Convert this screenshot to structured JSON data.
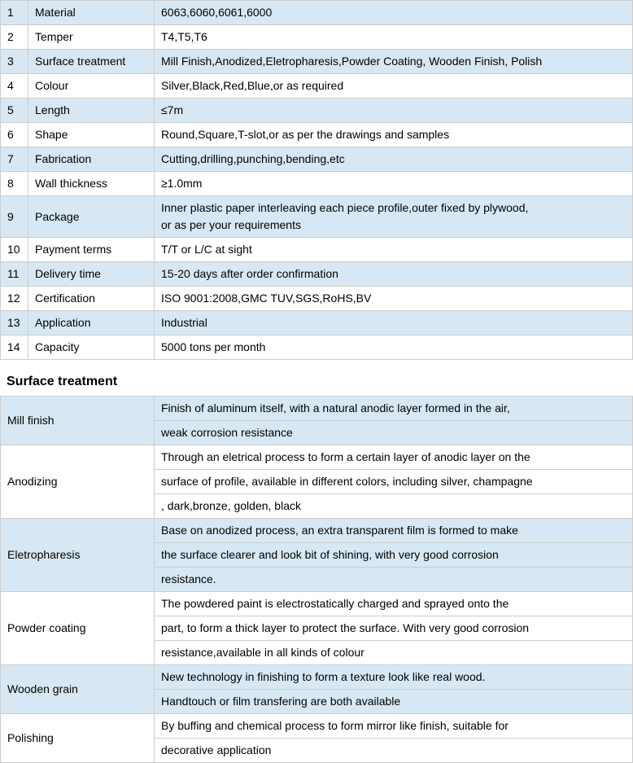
{
  "colors": {
    "alt_row_bg": "#d7e8f4",
    "plain_row_bg": "#ffffff",
    "border": "#cccccc",
    "text": "#000000"
  },
  "specs": {
    "rows": [
      {
        "n": "1",
        "label": "Material",
        "value": "6063,6060,6061,6000"
      },
      {
        "n": "2",
        "label": "Temper",
        "value": "T4,T5,T6"
      },
      {
        "n": "3",
        "label": "Surface treatment",
        "value": "Mill Finish,Anodized,Eletropharesis,Powder Coating, Wooden Finish, Polish"
      },
      {
        "n": "4",
        "label": "Colour",
        "value": "Silver,Black,Red,Blue,or as required"
      },
      {
        "n": "5",
        "label": "Length",
        "value": "≤7m"
      },
      {
        "n": "6",
        "label": "Shape",
        "value": "Round,Square,T-slot,or as per the drawings and samples"
      },
      {
        "n": "7",
        "label": "Fabrication",
        "value": "Cutting,drilling,punching,bending,etc"
      },
      {
        "n": "8",
        "label": "Wall thickness",
        "value": "≥1.0mm"
      },
      {
        "n": "9",
        "label": "Package",
        "value_lines": [
          "Inner plastic paper interleaving each piece profile,outer fixed by plywood,",
          "or as per your requirements"
        ]
      },
      {
        "n": "10",
        "label": "Payment terms",
        "value": "T/T or L/C at sight"
      },
      {
        "n": "11",
        "label": "Delivery time",
        "value": "15-20  days after order confirmation"
      },
      {
        "n": "12",
        "label": "Certification",
        "value": "ISO 9001:2008,GMC TUV,SGS,RoHS,BV"
      },
      {
        "n": "13",
        "label": "Application",
        "value": "Industrial"
      },
      {
        "n": "14",
        "label": "Capacity",
        "value": "5000 tons per month"
      }
    ]
  },
  "surface_section": {
    "title": "Surface treatment",
    "items": [
      {
        "label": "Mill finish",
        "lines": [
          "Finish of aluminum itself, with a natural anodic layer formed in the air,",
          "weak corrosion resistance"
        ],
        "alt": true
      },
      {
        "label": "Anodizing",
        "lines": [
          "Through   an eletrical process to form a certain layer of anodic layer on the",
          "surface of profile, available in different colors, including silver,   champagne",
          ", dark,bronze, golden, black"
        ],
        "alt": false
      },
      {
        "label": "Eletropharesis",
        "lines": [
          "Base on anodized process, an extra transparent film is formed to make",
          "the surface clearer and look bit of shining, with very good corrosion",
          "resistance."
        ],
        "alt": true
      },
      {
        "label": "Powder coating",
        "lines": [
          "The powdered paint is electrostatically charged and sprayed onto the",
          "part, to form a thick layer to protect the surface. With very good corrosion",
          "resistance,available in all kinds of colour"
        ],
        "alt": false
      },
      {
        "label": "Wooden grain",
        "lines": [
          "New technology in finishing to form a texture look like real wood.",
          "Handtouch or film transfering are both available"
        ],
        "alt": true
      },
      {
        "label": "Polishing",
        "lines": [
          "By buffing and chemical process to form mirror like finish, suitable for",
          "decorative application"
        ],
        "alt": false
      }
    ]
  }
}
